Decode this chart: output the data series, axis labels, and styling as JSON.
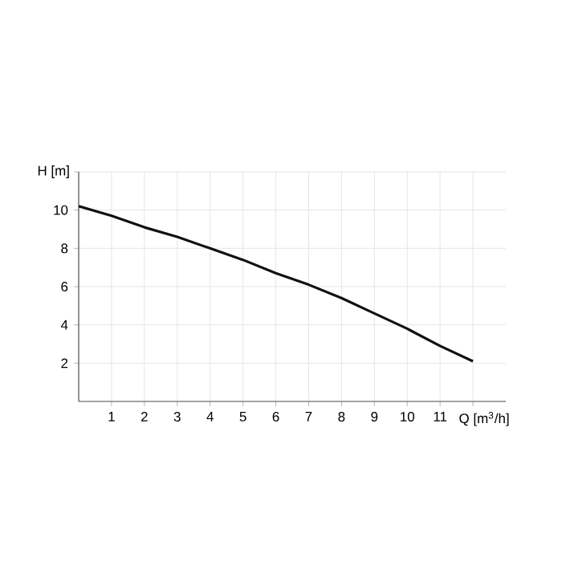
{
  "chart_data": {
    "type": "line",
    "xlabel": "Q [m$^{3}$/h]",
    "ylabel": "H [m]",
    "x": [
      0,
      1,
      2,
      3,
      4,
      5,
      6,
      7,
      8,
      9,
      10,
      11,
      12
    ],
    "series": [
      {
        "color": "#111111",
        "values": [
          10.2,
          9.7,
          9.1,
          8.6,
          8.0,
          7.4,
          6.7,
          6.1,
          5.4,
          4.6,
          3.8,
          2.9,
          2.1
        ]
      }
    ],
    "xlim": [
      0,
      13
    ],
    "ylim": [
      0,
      12
    ],
    "xticks": [
      1,
      2,
      3,
      4,
      5,
      6,
      7,
      8,
      9,
      10,
      11,
      {
        "value": 12,
        "label": null
      }
    ],
    "yticks": [
      2,
      4,
      6,
      8,
      10,
      {
        "value": 12,
        "label": null
      }
    ],
    "grid": true,
    "marker": "none",
    "line_style": "solid"
  }
}
